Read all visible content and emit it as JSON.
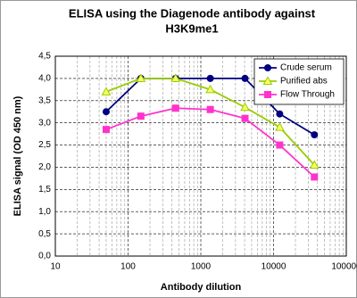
{
  "chart_data": {
    "type": "line",
    "title_lines": [
      "ELISA using the Diagenode antibody against",
      "H3K9me1"
    ],
    "x_label": "Antibody dilution",
    "y_label": "ELISA signal (OD 450 nm)",
    "x": [
      50,
      150,
      450,
      1350,
      4050,
      12150,
      36450
    ],
    "log_x": true,
    "xlim": [
      10,
      100000
    ],
    "xticks": [
      10,
      100,
      1000,
      10000,
      100000
    ],
    "ylim": [
      0,
      4.5
    ],
    "yticks": [
      {
        "value": 0,
        "label": "0,0"
      },
      {
        "value": 0.5,
        "label": "0,5"
      },
      {
        "value": 1,
        "label": "1,0"
      },
      {
        "value": 1.5,
        "label": "1,5"
      },
      {
        "value": 2,
        "label": "2,0"
      },
      {
        "value": 2.5,
        "label": "2,5"
      },
      {
        "value": 3,
        "label": "3,0"
      },
      {
        "value": 3.5,
        "label": "3,5"
      },
      {
        "value": 4,
        "label": "4,0"
      },
      {
        "value": 4.5,
        "label": "4,5"
      }
    ],
    "grid": true,
    "legend": "upper right",
    "series": [
      {
        "name": "Crude serum",
        "color": "#000080",
        "marker": "circle",
        "values": [
          3.25,
          4.0,
          4.0,
          4.0,
          4.0,
          3.2,
          2.73
        ]
      },
      {
        "name": "Purified abs",
        "color": "#99cc00",
        "marker": "triangle",
        "values": [
          3.7,
          4.0,
          4.0,
          3.75,
          3.35,
          2.9,
          2.05
        ]
      },
      {
        "name": "Flow Through",
        "color": "#ff33cc",
        "marker": "square",
        "values": [
          2.85,
          3.15,
          3.33,
          3.3,
          3.1,
          2.5,
          1.78
        ]
      }
    ]
  }
}
